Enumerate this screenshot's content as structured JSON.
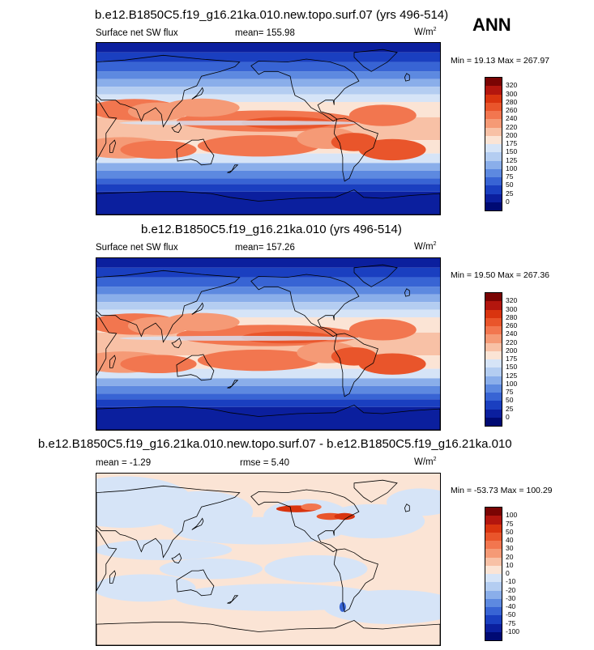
{
  "season": "ANN",
  "panels": [
    {
      "title": "b.e12.B1850C5.f19_g16.21ka.010.new.topo.surf.07 (yrs 496-514)",
      "left_label": "Surface net SW flux",
      "mean_label": "mean= 155.98",
      "units_base": "W/m",
      "units_sup": "2",
      "minmax": "Min =  19.13 Max = 267.97",
      "colorbar_levels": [
        "320",
        "300",
        "280",
        "260",
        "240",
        "220",
        "200",
        "175",
        "150",
        "125",
        "100",
        "75",
        "50",
        "25",
        "0"
      ],
      "field": "abs",
      "seed": 1
    },
    {
      "title": "b.e12.B1850C5.f19_g16.21ka.010 (yrs 496-514)",
      "left_label": "Surface net SW flux",
      "mean_label": "mean= 157.26",
      "units_base": "W/m",
      "units_sup": "2",
      "minmax": "Min =  19.50 Max = 267.36",
      "colorbar_levels": [
        "320",
        "300",
        "280",
        "260",
        "240",
        "220",
        "200",
        "175",
        "150",
        "125",
        "100",
        "75",
        "50",
        "25",
        "0"
      ],
      "field": "abs",
      "seed": 2
    },
    {
      "title": "b.e12.B1850C5.f19_g16.21ka.010.new.topo.surf.07 - b.e12.B1850C5.f19_g16.21ka.010",
      "left_label": "mean =  -1.29",
      "mean_label": "rmse =   5.40",
      "units_base": "W/m",
      "units_sup": "2",
      "minmax": "Min = -53.73 Max = 100.29",
      "colorbar_levels": [
        "100",
        "75",
        "50",
        "40",
        "30",
        "20",
        "10",
        "0",
        "-10",
        "-20",
        "-30",
        "-40",
        "-50",
        "-75",
        "-100"
      ],
      "field": "diff",
      "seed": 3
    }
  ],
  "colors": {
    "abs_colorbar": [
      "#7a0403",
      "#b3160e",
      "#d9340f",
      "#e9552b",
      "#f2764f",
      "#f59a76",
      "#f8c1a6",
      "#fbe4d5",
      "#d6e4f7",
      "#b4cdf1",
      "#8aaeea",
      "#5d89e0",
      "#3864d4",
      "#1a3fc0",
      "#0b1f9e",
      "#000a73"
    ],
    "diff_colorbar": [
      "#7a0403",
      "#b3160e",
      "#d9340f",
      "#e9552b",
      "#f2764f",
      "#f59a76",
      "#f8c1a6",
      "#fbe4d5",
      "#d6e4f7",
      "#b4cdf1",
      "#8aaeea",
      "#5d89e0",
      "#3864d4",
      "#1a3fc0",
      "#0b1f9e",
      "#000a73"
    ]
  }
}
